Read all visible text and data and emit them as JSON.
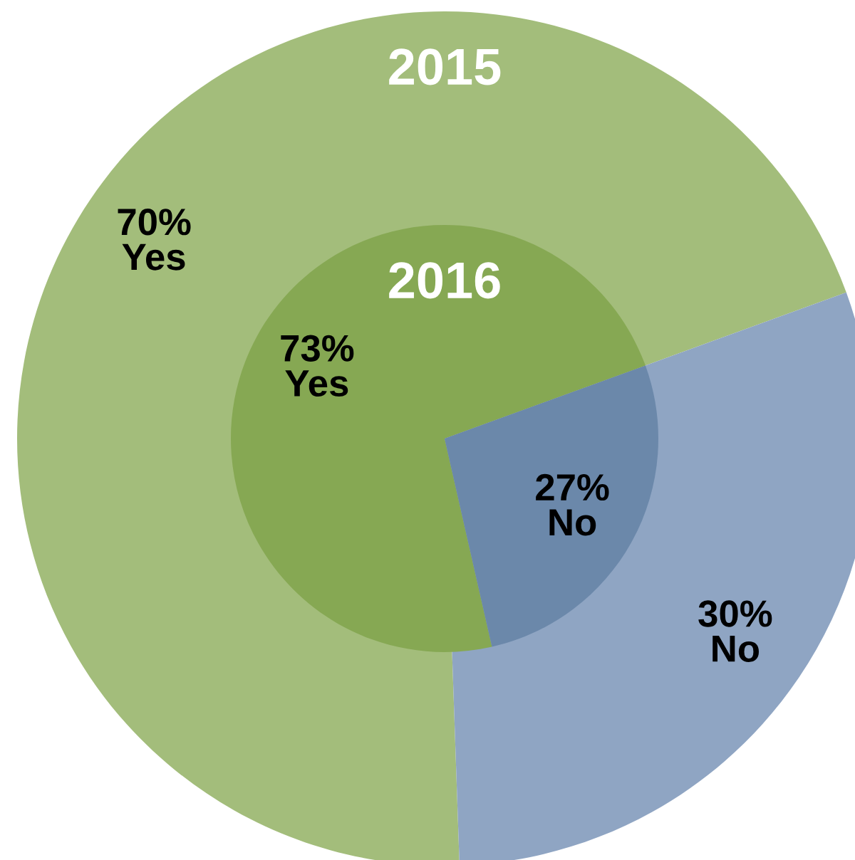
{
  "chart_data": {
    "type": "pie",
    "categories": [
      "Yes",
      "No"
    ],
    "series": [
      {
        "name": "2015",
        "colors": [
          "#a3bd7b",
          "#8fa5c3"
        ],
        "values": [
          70,
          30
        ],
        "value_labels": [
          "70%",
          "30%"
        ]
      },
      {
        "name": "2016",
        "colors": [
          "#86a853",
          "#6b88aa"
        ],
        "values": [
          73,
          27
        ],
        "value_labels": [
          "73%",
          "27%"
        ]
      }
    ]
  }
}
